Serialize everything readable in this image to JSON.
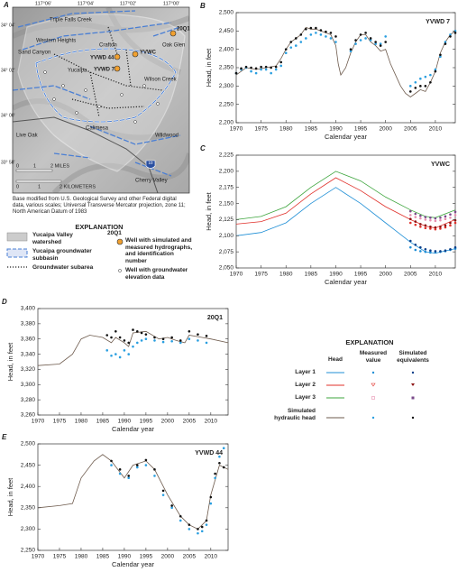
{
  "panels": [
    "A"
  ],
  "map": {
    "lon_labels": [
      "117°06'",
      "117°04'",
      "117°02'",
      "117°00'"
    ],
    "lat_labels": [
      "34° 04'",
      "34° 02'",
      "34° 00'",
      "33° 58'"
    ],
    "labels": [
      "Triple Falls Creek",
      "Western Heights",
      "Sand Canyon",
      "Crafton",
      "Yucaipa",
      "Calimesa",
      "Live Oak",
      "Wildwood",
      "Cherry Valley",
      "Oak Glen",
      "Wilson Creek",
      "20Q1",
      "YVWD 44",
      "YVWC",
      "YVWD 7",
      "10"
    ],
    "scale": [
      "0",
      "1",
      "2 MILES",
      "0",
      "1",
      "2 KILOMETERS"
    ],
    "base_note": "Base modified from U.S. Geological Survey and other Federal digital data, various scales; Universal Transverse Mercator projection, zone 11; North American Datum of 1983",
    "explanation": {
      "title": "EXPLANATION",
      "watershed": "Yucaipa Valley watershed",
      "subbasin": "Yucaipa groundwater subbasin",
      "subarea": "Groundwater subarea",
      "well_id": "20Q1",
      "well_hydro": "Well with simulated and measured hydrographs, and identification number",
      "well_elev": "Well with groundwater elevation data"
    }
  },
  "legend": {
    "title": "EXPLANATION",
    "headers": [
      "Head",
      "Measured value",
      "Simulated equivalents"
    ],
    "rows": [
      "Layer 1",
      "Layer 2",
      "Layer 3",
      "Simulated hydraulic head"
    ]
  },
  "chart_data": [
    {
      "type": "line",
      "panel": "B",
      "label": "YVWD 7",
      "ylabel": "Head, in feet",
      "xlabel": "Calendar year",
      "xlim": [
        1970,
        2014
      ],
      "xticks": [
        1970,
        1975,
        1980,
        1985,
        1990,
        1995,
        2000,
        2005,
        2010
      ],
      "ylim": [
        2200,
        2500
      ],
      "yticks": [
        {
          "value": 2200,
          "label": "2,200"
        },
        {
          "value": 2250,
          "label": "2,250"
        },
        {
          "value": 2300,
          "label": "2,300"
        },
        {
          "value": 2350,
          "label": "2,350"
        },
        {
          "value": 2400,
          "label": "2,400"
        },
        {
          "value": 2450,
          "label": "2,450"
        },
        {
          "value": 2500,
          "label": "2,500"
        }
      ],
      "series": [
        {
          "style": "line",
          "color": "#6e5b4d",
          "x": [
            1970,
            1972,
            1974,
            1976,
            1978,
            1979,
            1980,
            1981,
            1982,
            1983,
            1984,
            1985,
            1986,
            1987,
            1988,
            1989,
            1990,
            1990.5,
            1991,
            1992,
            1993,
            1994,
            1995,
            1996,
            1997,
            1998,
            1999,
            2000,
            2001,
            2002,
            2003,
            2004,
            2005,
            2006,
            2007,
            2008,
            2009,
            2010,
            2011,
            2012,
            2013,
            2014
          ],
          "values": [
            2330,
            2350,
            2345,
            2350,
            2355,
            2375,
            2400,
            2420,
            2430,
            2440,
            2460,
            2455,
            2455,
            2450,
            2445,
            2440,
            2410,
            2360,
            2330,
            2350,
            2390,
            2420,
            2440,
            2440,
            2420,
            2410,
            2395,
            2400,
            2360,
            2330,
            2300,
            2280,
            2270,
            2280,
            2290,
            2285,
            2310,
            2340,
            2390,
            2420,
            2440,
            2450
          ]
        },
        {
          "style": "points",
          "color": "#2a9fe0",
          "x": [
            1970,
            1971,
            1972,
            1973,
            1974,
            1975,
            1976,
            1977,
            1978,
            1979,
            1980,
            1981,
            1982,
            1983,
            1984,
            1985,
            1986,
            1987,
            1988,
            1989,
            1990,
            1993,
            1994,
            1995,
            1996,
            1997,
            1998,
            1999,
            2000,
            2005,
            2006,
            2007,
            2008,
            2009,
            2010,
            2011,
            2012,
            2013,
            2014
          ],
          "values": [
            2335,
            2345,
            2350,
            2340,
            2335,
            2345,
            2345,
            2335,
            2345,
            2355,
            2390,
            2405,
            2410,
            2420,
            2430,
            2440,
            2445,
            2440,
            2435,
            2430,
            2420,
            2395,
            2415,
            2425,
            2430,
            2425,
            2415,
            2415,
            2435,
            2300,
            2310,
            2320,
            2325,
            2330,
            2345,
            2380,
            2420,
            2440,
            2450
          ]
        },
        {
          "style": "points",
          "color": "#111111",
          "x": [
            1970,
            1971,
            1972,
            1973,
            1974,
            1975,
            1976,
            1977,
            1978,
            1979,
            1980,
            1981,
            1982,
            1983,
            1984,
            1985,
            1986,
            1987,
            1988,
            1989,
            1990,
            1993,
            1994,
            1995,
            1996,
            1997,
            1998,
            1999,
            2000,
            2005,
            2006,
            2007,
            2008,
            2009,
            2010,
            2011,
            2012,
            2013,
            2014
          ],
          "values": [
            2335,
            2348,
            2352,
            2350,
            2348,
            2352,
            2352,
            2350,
            2352,
            2365,
            2400,
            2420,
            2430,
            2440,
            2455,
            2458,
            2458,
            2452,
            2448,
            2445,
            2435,
            2400,
            2425,
            2440,
            2445,
            2430,
            2420,
            2410,
            2420,
            2285,
            2295,
            2300,
            2300,
            2310,
            2340,
            2385,
            2415,
            2435,
            2445
          ]
        }
      ]
    },
    {
      "type": "line",
      "panel": "C",
      "label": "YVWC",
      "ylabel": "Head, in feet",
      "xlabel": "Calendar year",
      "xlim": [
        1970,
        2014
      ],
      "xticks": [
        1970,
        1975,
        1980,
        1985,
        1990,
        1995,
        2000,
        2005,
        2010
      ],
      "ylim": [
        2050,
        2225
      ],
      "yticks": [
        {
          "value": 2050,
          "label": "2,050"
        },
        {
          "value": 2075,
          "label": "2,075"
        },
        {
          "value": 2100,
          "label": "2,100"
        },
        {
          "value": 2125,
          "label": "2,125"
        },
        {
          "value": 2150,
          "label": "2,150"
        },
        {
          "value": 2175,
          "label": "2,175"
        },
        {
          "value": 2200,
          "label": "2,200"
        },
        {
          "value": 2225,
          "label": "2,225"
        }
      ],
      "series": [
        {
          "style": "line",
          "color": "#3da53d",
          "x": [
            1970,
            1975,
            1980,
            1985,
            1990,
            1995,
            2000,
            2005,
            2008,
            2010,
            2014
          ],
          "values": [
            2125,
            2130,
            2145,
            2175,
            2200,
            2185,
            2160,
            2140,
            2130,
            2128,
            2140
          ]
        },
        {
          "style": "line",
          "color": "#e0302a",
          "x": [
            1970,
            1975,
            1980,
            1985,
            1990,
            1995,
            2000,
            2005,
            2008,
            2010,
            2014
          ],
          "values": [
            2118,
            2122,
            2135,
            2165,
            2190,
            2170,
            2145,
            2125,
            2115,
            2112,
            2125
          ]
        },
        {
          "style": "line",
          "color": "#1f8fd6",
          "x": [
            1970,
            1975,
            1980,
            1985,
            1990,
            1995,
            2000,
            2005,
            2008,
            2010,
            2014
          ],
          "values": [
            2100,
            2105,
            2120,
            2150,
            2175,
            2150,
            2120,
            2090,
            2075,
            2073,
            2080
          ]
        },
        {
          "style": "points",
          "color": "#1f8fd6",
          "x": [
            2005,
            2006,
            2007,
            2008,
            2009,
            2010,
            2011,
            2012,
            2013,
            2014
          ],
          "values": [
            2082,
            2078,
            2076,
            2075,
            2074,
            2074,
            2075,
            2076,
            2078,
            2080
          ]
        },
        {
          "style": "points",
          "color": "#0b3f8a",
          "x": [
            2005,
            2006,
            2007,
            2008,
            2009,
            2010,
            2011,
            2012,
            2013,
            2014
          ],
          "values": [
            2092,
            2086,
            2082,
            2079,
            2077,
            2076,
            2076,
            2077,
            2079,
            2082
          ]
        },
        {
          "style": "points",
          "color": "#e0302a",
          "x": [
            2005,
            2006,
            2007,
            2008,
            2009,
            2010,
            2011,
            2012,
            2013,
            2014
          ],
          "values": [
            2120,
            2117,
            2114,
            2112,
            2111,
            2110,
            2111,
            2113,
            2116,
            2120
          ]
        },
        {
          "style": "points",
          "color": "#8a1010",
          "x": [
            2005,
            2006,
            2007,
            2008,
            2009,
            2010,
            2011,
            2012,
            2013,
            2014
          ],
          "values": [
            2126,
            2122,
            2118,
            2116,
            2114,
            2113,
            2114,
            2116,
            2120,
            2124
          ]
        },
        {
          "style": "points",
          "color": "#e88fb0",
          "x": [
            2005,
            2006,
            2007,
            2008,
            2009,
            2010,
            2011,
            2012,
            2013,
            2014
          ],
          "values": [
            2132,
            2129,
            2127,
            2125,
            2124,
            2123,
            2124,
            2126,
            2128,
            2132
          ]
        },
        {
          "style": "points",
          "color": "#7a4a8a",
          "x": [
            2005,
            2006,
            2007,
            2008,
            2009,
            2010,
            2011,
            2012,
            2013,
            2014
          ],
          "values": [
            2138,
            2134,
            2131,
            2129,
            2128,
            2127,
            2128,
            2130,
            2133,
            2137
          ]
        }
      ]
    },
    {
      "type": "line",
      "panel": "D",
      "label": "20Q1",
      "ylabel": "Head, in feet",
      "xlabel": "Calendar year",
      "xlim": [
        1970,
        2014
      ],
      "xticks": [
        1970,
        1975,
        1980,
        1985,
        1990,
        1995,
        2000,
        2005,
        2010
      ],
      "ylim": [
        3260,
        3400
      ],
      "yticks": [
        {
          "value": 3260,
          "label": "3,260"
        },
        {
          "value": 3280,
          "label": "3,280"
        },
        {
          "value": 3300,
          "label": "3,300"
        },
        {
          "value": 3320,
          "label": "3,320"
        },
        {
          "value": 3340,
          "label": "3,340"
        },
        {
          "value": 3360,
          "label": "3,360"
        },
        {
          "value": 3380,
          "label": "3,380"
        },
        {
          "value": 3400,
          "label": "3,400"
        }
      ],
      "series": [
        {
          "style": "line",
          "color": "#6e5b4d",
          "x": [
            1970,
            1975,
            1978,
            1980,
            1982,
            1985,
            1987,
            1988,
            1990,
            1991,
            1992,
            1995,
            1998,
            2000,
            2002,
            2004,
            2005,
            2008,
            2010,
            2014
          ],
          "values": [
            3325,
            3327,
            3340,
            3360,
            3365,
            3362,
            3355,
            3362,
            3355,
            3350,
            3368,
            3370,
            3360,
            3362,
            3358,
            3355,
            3365,
            3362,
            3360,
            3355
          ]
        },
        {
          "style": "points",
          "color": "#2a9fe0",
          "x": [
            1986,
            1987,
            1988,
            1989,
            1990,
            1991,
            1992,
            1993,
            1994,
            1995,
            1997,
            1999,
            2001,
            2003,
            2005,
            2007,
            2009
          ],
          "values": [
            3345,
            3338,
            3340,
            3336,
            3345,
            3340,
            3350,
            3355,
            3358,
            3360,
            3358,
            3356,
            3357,
            3355,
            3360,
            3358,
            3355
          ]
        },
        {
          "style": "points",
          "color": "#111111",
          "x": [
            1986,
            1987,
            1988,
            1989,
            1990,
            1991,
            1992,
            1993,
            1994,
            1995,
            1997,
            1999,
            2001,
            2003,
            2005,
            2007,
            2009
          ],
          "values": [
            3365,
            3362,
            3370,
            3362,
            3358,
            3355,
            3372,
            3370,
            3368,
            3366,
            3362,
            3360,
            3362,
            3358,
            3370,
            3366,
            3364
          ]
        }
      ]
    },
    {
      "type": "line",
      "panel": "E",
      "label": "YVWD 44",
      "ylabel": "Head, in feet",
      "xlabel": "Calendar year",
      "xlim": [
        1970,
        2014
      ],
      "xticks": [
        1970,
        1975,
        1980,
        1985,
        1990,
        1995,
        2000,
        2005,
        2010
      ],
      "ylim": [
        2250,
        2500
      ],
      "yticks": [
        {
          "value": 2250,
          "label": "2,250"
        },
        {
          "value": 2300,
          "label": "2,300"
        },
        {
          "value": 2350,
          "label": "2,350"
        },
        {
          "value": 2400,
          "label": "2,400"
        },
        {
          "value": 2450,
          "label": "2,450"
        },
        {
          "value": 2500,
          "label": "2,500"
        }
      ],
      "series": [
        {
          "style": "line",
          "color": "#6e5b4d",
          "x": [
            1970,
            1975,
            1978,
            1980,
            1983,
            1985,
            1987,
            1990,
            1992,
            1995,
            1997,
            2000,
            2003,
            2005,
            2007,
            2009,
            2010,
            2012,
            2014
          ],
          "values": [
            2350,
            2355,
            2360,
            2420,
            2460,
            2475,
            2460,
            2420,
            2450,
            2460,
            2440,
            2380,
            2330,
            2310,
            2300,
            2320,
            2380,
            2450,
            2440
          ]
        },
        {
          "style": "points",
          "color": "#2a9fe0",
          "x": [
            1987,
            1989,
            1991,
            1993,
            1995,
            1997,
            1999,
            2001,
            2003,
            2005,
            2007,
            2008,
            2009,
            2010,
            2011,
            2012,
            2013
          ],
          "values": [
            2450,
            2430,
            2420,
            2445,
            2450,
            2425,
            2380,
            2350,
            2320,
            2300,
            2290,
            2295,
            2310,
            2360,
            2420,
            2470,
            2490
          ]
        },
        {
          "style": "points",
          "color": "#111111",
          "x": [
            1987,
            1989,
            1991,
            1993,
            1995,
            1997,
            1999,
            2001,
            2003,
            2005,
            2007,
            2008,
            2009,
            2010,
            2011,
            2012,
            2013
          ],
          "values": [
            2460,
            2440,
            2425,
            2450,
            2462,
            2440,
            2390,
            2355,
            2330,
            2310,
            2300,
            2305,
            2320,
            2375,
            2430,
            2455,
            2445
          ]
        }
      ]
    }
  ]
}
